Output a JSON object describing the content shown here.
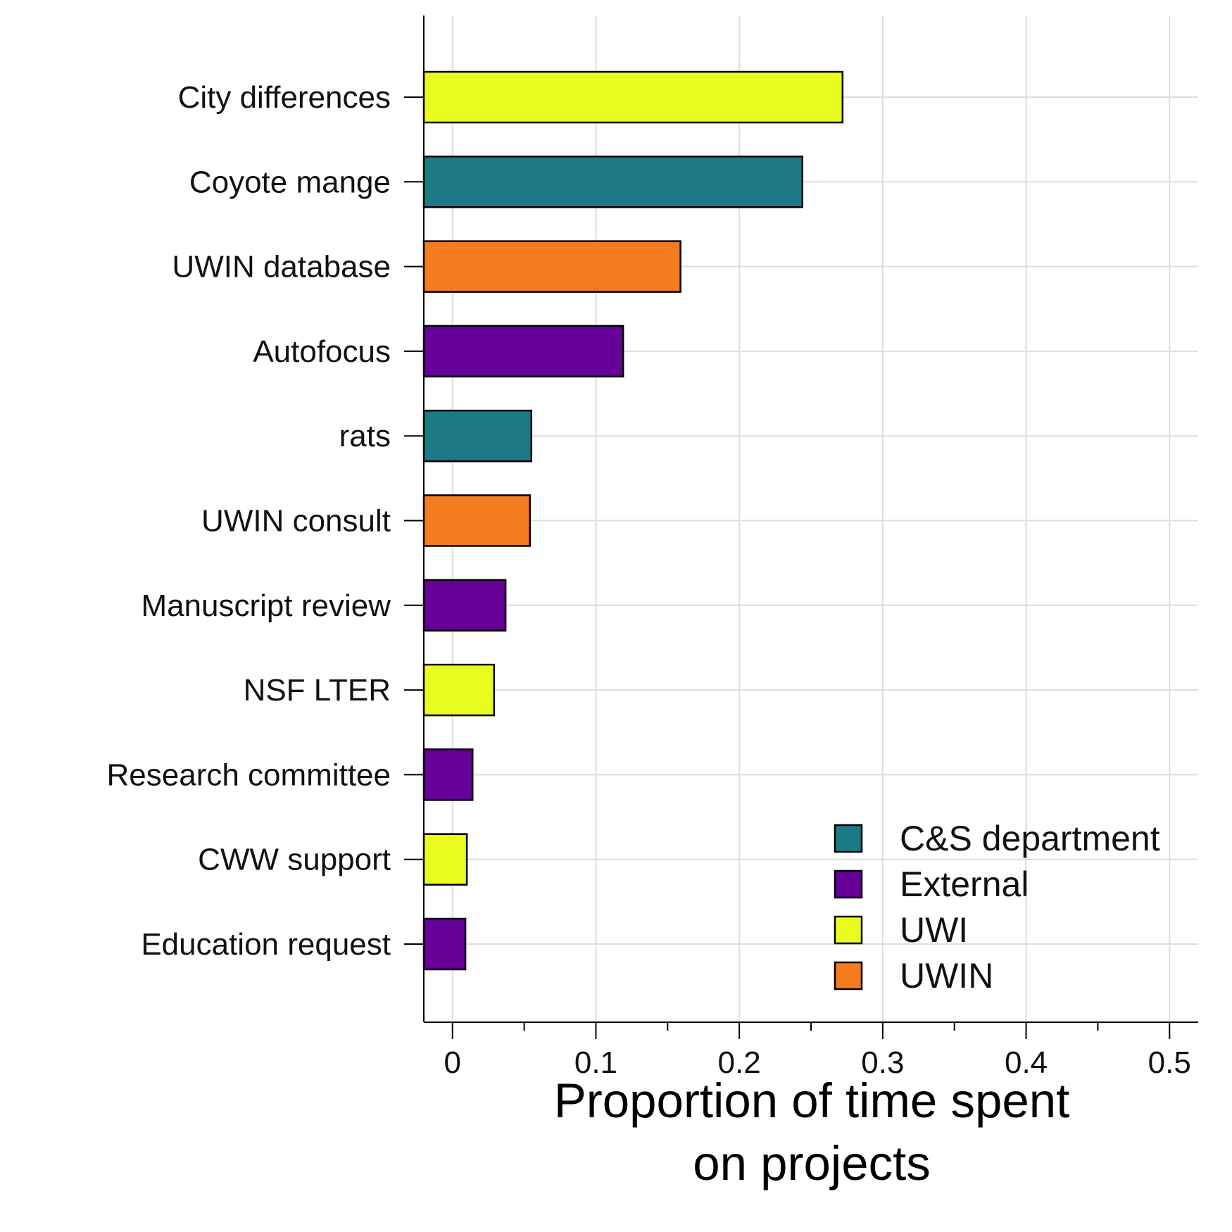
{
  "chart_data": {
    "type": "bar",
    "orientation": "horizontal",
    "xlabel_lines": [
      "Proportion of time spent",
      "on projects"
    ],
    "ylabel": "",
    "xlim": [
      -0.02,
      0.52
    ],
    "xticks": [
      0,
      0.1,
      0.2,
      0.3,
      0.4,
      0.5
    ],
    "xtick_labels": [
      "0",
      "0.1",
      "0.2",
      "0.3",
      "0.4",
      "0.5"
    ],
    "minor_xticks": [
      0.05,
      0.15,
      0.25,
      0.35,
      0.45
    ],
    "grid": true,
    "legend_position": "bottom-right",
    "categories": [
      "City differences",
      "Coyote mange",
      "UWIN database",
      "Autofocus",
      "rats",
      "UWIN consult",
      "Manuscript review",
      "NSF LTER",
      "Research committee",
      "CWW support",
      "Education request"
    ],
    "values": [
      0.272,
      0.244,
      0.159,
      0.119,
      0.055,
      0.054,
      0.037,
      0.029,
      0.014,
      0.01,
      0.009
    ],
    "groups": [
      "UWI",
      "C&S department",
      "UWIN",
      "External",
      "C&S department",
      "UWIN",
      "External",
      "UWI",
      "External",
      "UWI",
      "External"
    ],
    "legend": [
      {
        "name": "C&S department",
        "color": "#1c7a87"
      },
      {
        "name": "External",
        "color": "#660098"
      },
      {
        "name": "UWI",
        "color": "#eafc1f"
      },
      {
        "name": "UWIN",
        "color": "#f47b20"
      }
    ]
  }
}
